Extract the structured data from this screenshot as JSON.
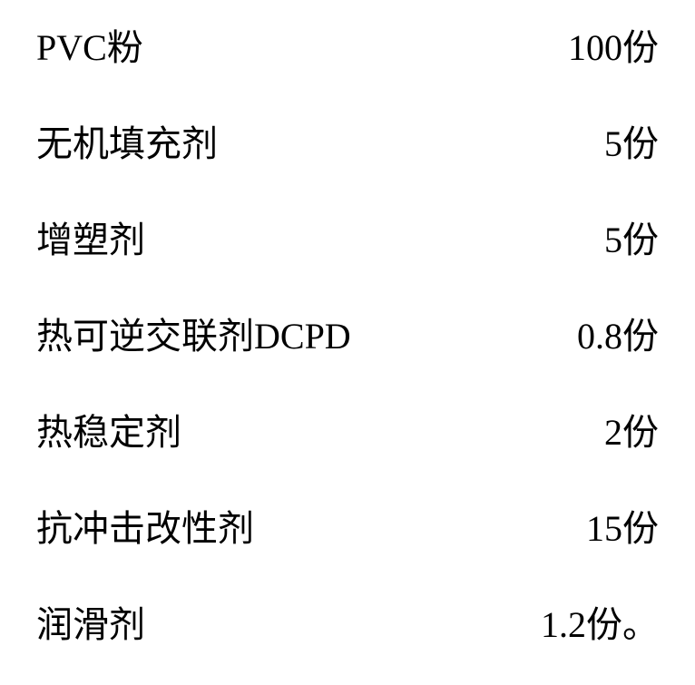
{
  "table": {
    "type": "table",
    "background_color": "#ffffff",
    "text_color": "#000000",
    "font_size": 40,
    "font_family": "SimSun",
    "rows": [
      {
        "label": "PVC粉",
        "value": "100份"
      },
      {
        "label": "无机填充剂",
        "value": "5份"
      },
      {
        "label": "增塑剂",
        "value": "5份"
      },
      {
        "label": "热可逆交联剂DCPD",
        "value": "0.8份"
      },
      {
        "label": "热稳定剂",
        "value": "2份"
      },
      {
        "label": "抗冲击改性剂",
        "value": "15份"
      },
      {
        "label": "润滑剂",
        "value": "1.2份。"
      }
    ]
  }
}
